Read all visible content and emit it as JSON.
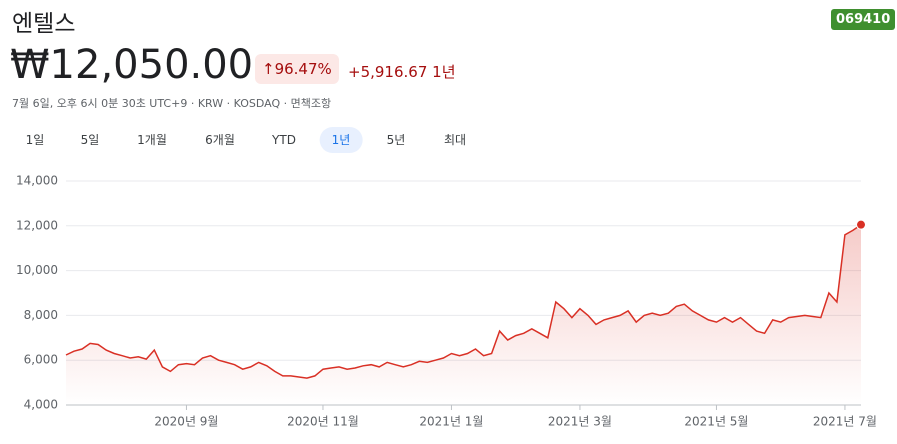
{
  "header": {
    "title": "엔텔스",
    "ticker": "069410",
    "price": "₩12,050.00",
    "change_percent": "96.47%",
    "change": "+5,916.67",
    "period": "1년",
    "info": "7월 6일, 오후 6시 0분 30초 UTC+9 · KRW · KOSDAQ · 면책조항"
  },
  "ranges": [
    "1일",
    "5일",
    "1개월",
    "6개월",
    "YTD",
    "1년",
    "5년",
    "최대"
  ],
  "selected_range": 5,
  "chart_data": {
    "type": "line",
    "categories": [
      null,
      null,
      null,
      null,
      null,
      null,
      null,
      null,
      null,
      null,
      null,
      null,
      null,
      null,
      null,
      "2020년 9월",
      null,
      null,
      null,
      null,
      null,
      null,
      null,
      null,
      null,
      null,
      null,
      null,
      null,
      null,
      null,
      null,
      "2020년 11월",
      null,
      null,
      null,
      null,
      null,
      null,
      null,
      null,
      null,
      null,
      null,
      null,
      null,
      null,
      null,
      "2021년 1월",
      null,
      null,
      null,
      null,
      null,
      null,
      null,
      null,
      null,
      null,
      null,
      null,
      null,
      null,
      null,
      "2021년 3월",
      null,
      null,
      null,
      null,
      null,
      null,
      null,
      null,
      null,
      null,
      null,
      null,
      null,
      null,
      null,
      null,
      "2021년 5월",
      null,
      null,
      null,
      null,
      null,
      null,
      null,
      null,
      null,
      null,
      null,
      null,
      null,
      null,
      null,
      "2021년 7월",
      null,
      null
    ],
    "series": [
      {
        "color": "#d93025",
        "values": [
          6230,
          6400,
          6500,
          6750,
          6700,
          6450,
          6300,
          6200,
          6100,
          6150,
          6050,
          6450,
          5700,
          5500,
          5800,
          5850,
          5800,
          6100,
          6200,
          6000,
          5900,
          5800,
          5600,
          5700,
          5900,
          5750,
          5500,
          5300,
          5300,
          5250,
          5200,
          5300,
          5600,
          5650,
          5700,
          5600,
          5650,
          5750,
          5800,
          5700,
          5900,
          5800,
          5700,
          5800,
          5950,
          5900,
          6000,
          6100,
          6300,
          6200,
          6300,
          6500,
          6200,
          6300,
          7300,
          6900,
          7100,
          7200,
          7400,
          7200,
          7000,
          8600,
          8300,
          7900,
          8300,
          8000,
          7600,
          7800,
          7900,
          8000,
          8200,
          7700,
          8000,
          8100,
          8000,
          8100,
          8400,
          8500,
          8200,
          8000,
          7800,
          7700,
          7900,
          7700,
          7900,
          7600,
          7300,
          7200,
          7800,
          7700,
          7900,
          7950,
          8000,
          7950,
          7900,
          9000,
          8600,
          11600,
          11800,
          12050
        ]
      }
    ],
    "ylim": [
      4000,
      14000
    ],
    "yticks": [
      {
        "value": 4000,
        "label": "4,000"
      },
      {
        "value": 6000,
        "label": "6,000"
      },
      {
        "value": 8000,
        "label": "8,000"
      },
      {
        "value": 10000,
        "label": "10,000"
      },
      {
        "value": 12000,
        "label": "12,000"
      },
      {
        "value": 14000,
        "label": "14,000"
      }
    ],
    "grid": true
  }
}
